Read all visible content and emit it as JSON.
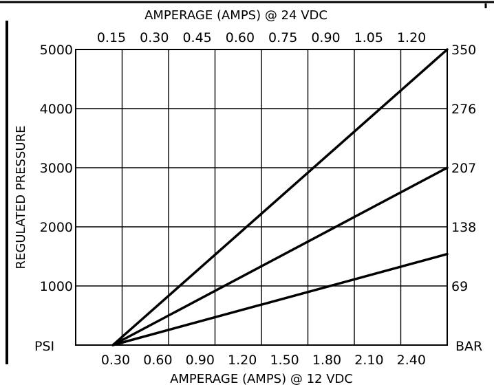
{
  "chart_data": {
    "type": "line",
    "top_axis_title": "AMPERAGE (AMPS) @ 24 VDC",
    "top_ticks": [
      "0.15",
      "0.30",
      "0.45",
      "0.60",
      "0.75",
      "0.90",
      "1.05",
      "1.20"
    ],
    "bottom_axis_title": "AMPERAGE (AMPS) @ 12 VDC",
    "bottom_ticks": [
      "0.30",
      "0.60",
      "0.90",
      "1.20",
      "1.50",
      "1.80",
      "2.10",
      "2.40"
    ],
    "left_axis_title": "REGULATED PRESSURE",
    "left_unit": "PSI",
    "left_ticks": [
      "1000",
      "2000",
      "3000",
      "4000",
      "5000"
    ],
    "left_tick_values": [
      1000,
      2000,
      3000,
      4000,
      5000
    ],
    "right_unit": "BAR",
    "right_ticks": [
      "69",
      "138",
      "207",
      "276",
      "350"
    ],
    "xlim": [
      0,
      2.4
    ],
    "ylim": [
      0,
      5000
    ],
    "grid": true,
    "series": [
      {
        "x": [
          0.24,
          2.4
        ],
        "y": [
          0,
          5000
        ]
      },
      {
        "x": [
          0.24,
          2.4
        ],
        "y": [
          0,
          3000
        ]
      },
      {
        "x": [
          0.24,
          2.4
        ],
        "y": [
          0,
          1540
        ]
      }
    ]
  }
}
